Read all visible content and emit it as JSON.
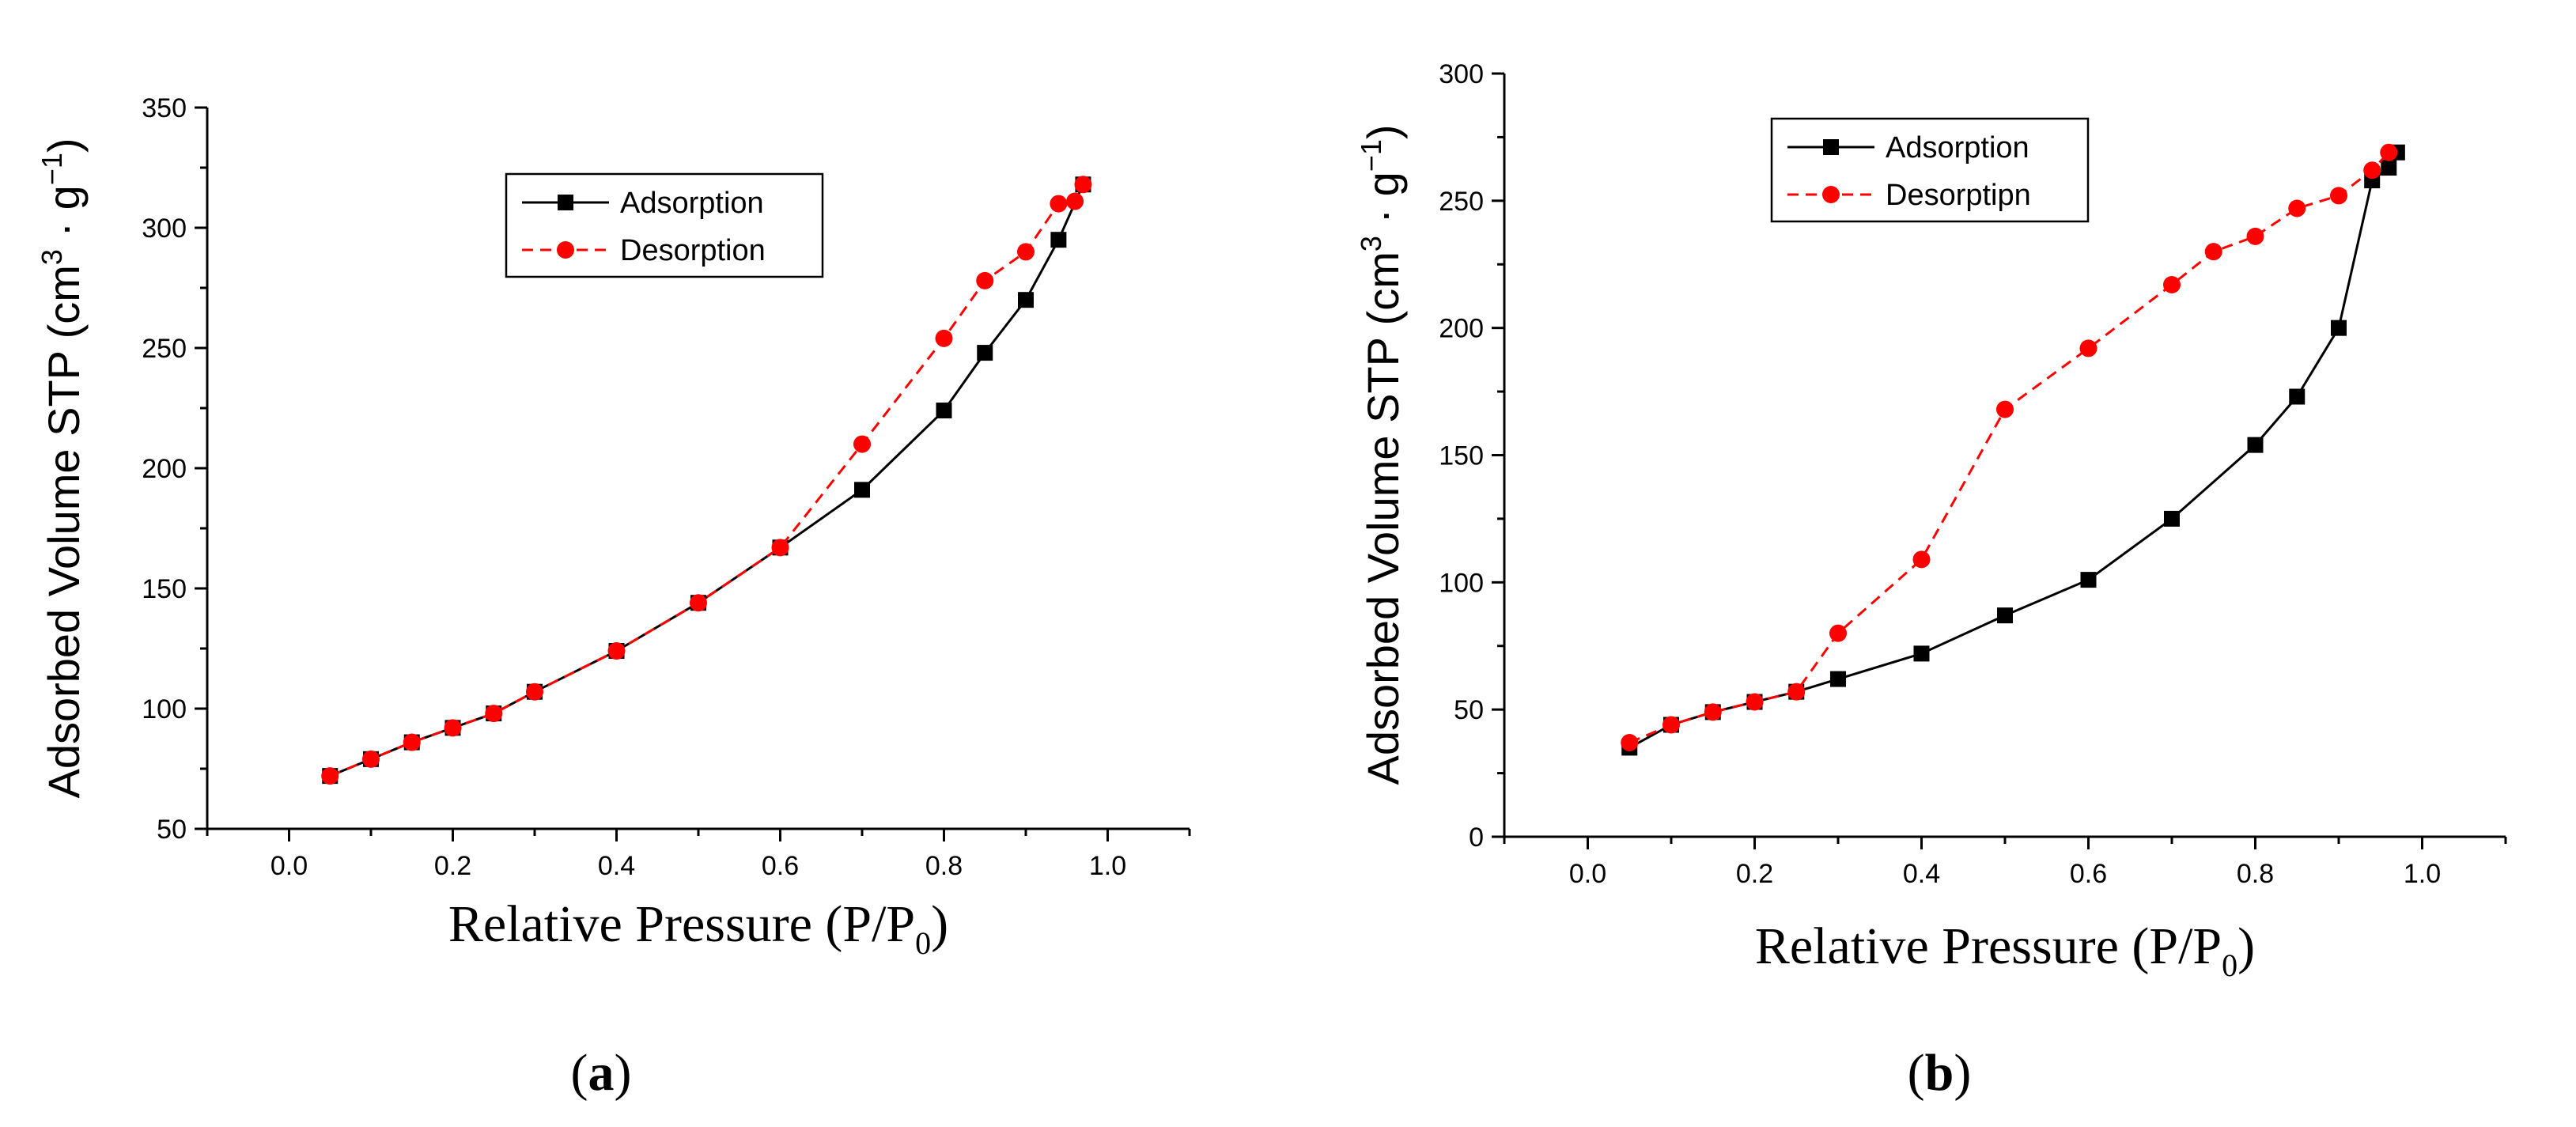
{
  "chart_data": [
    {
      "type": "line",
      "panel_label": "(a)",
      "panel_letter": "a",
      "xlabel": "Relative Pressure (P/P",
      "xlabel_sub": "0",
      "xlabel_end": ")",
      "ylabel": "Adsorbed Volume STP (cm",
      "ylabel_sup": "3",
      "ylabel_mid": "· g",
      "ylabel_sup2": "−1",
      "ylabel_end": ")",
      "xlim": [
        -0.1,
        1.1
      ],
      "ylim": [
        50,
        350
      ],
      "xticks": [
        0.0,
        0.2,
        0.4,
        0.6,
        0.8,
        1.0
      ],
      "xtick_labels": [
        "0.0",
        "0.2",
        "0.4",
        "0.6",
        "0.8",
        "1.0"
      ],
      "yticks": [
        50,
        100,
        150,
        200,
        250,
        300,
        350
      ],
      "ytick_labels": [
        "50",
        "100",
        "150",
        "200",
        "250",
        "300",
        "350"
      ],
      "legend_position": "top-center",
      "series": [
        {
          "name": "Adsorption",
          "color": "#000000",
          "marker": "square",
          "line": "solid",
          "x": [
            0.05,
            0.1,
            0.15,
            0.2,
            0.25,
            0.3,
            0.4,
            0.5,
            0.6,
            0.7,
            0.8,
            0.85,
            0.9,
            0.94,
            0.97
          ],
          "y": [
            72,
            79,
            86,
            92,
            98,
            107,
            124,
            144,
            167,
            191,
            224,
            248,
            270,
            295,
            318
          ]
        },
        {
          "name": "Desorption",
          "color": "#ff0000",
          "marker": "circle",
          "line": "dashed",
          "x": [
            0.05,
            0.1,
            0.15,
            0.2,
            0.25,
            0.3,
            0.4,
            0.5,
            0.6,
            0.7,
            0.8,
            0.85,
            0.9,
            0.94,
            0.96,
            0.97
          ],
          "y": [
            72,
            79,
            86,
            92,
            98,
            107,
            124,
            144,
            167,
            210,
            254,
            278,
            290,
            310,
            311,
            318
          ]
        }
      ]
    },
    {
      "type": "line",
      "panel_label": "(b)",
      "panel_letter": "b",
      "xlabel": "Relative Pressure (P/P",
      "xlabel_sub": "0",
      "xlabel_end": ")",
      "ylabel": "Adsorbed Volume STP (cm",
      "ylabel_sup": "3",
      "ylabel_mid": "· g",
      "ylabel_sup2": "−1",
      "ylabel_end": ")",
      "xlim": [
        -0.1,
        1.1
      ],
      "ylim": [
        0,
        300
      ],
      "xticks": [
        0.0,
        0.2,
        0.4,
        0.6,
        0.8,
        1.0
      ],
      "xtick_labels": [
        "0.0",
        "0.2",
        "0.4",
        "0.6",
        "0.8",
        "1.0"
      ],
      "yticks": [
        0,
        50,
        100,
        150,
        200,
        250,
        300
      ],
      "ytick_labels": [
        "0",
        "50",
        "100",
        "150",
        "200",
        "250",
        "300"
      ],
      "legend_position": "top-left",
      "series": [
        {
          "name": "Adsorption",
          "color": "#000000",
          "marker": "square",
          "line": "solid",
          "x": [
            0.05,
            0.1,
            0.15,
            0.2,
            0.25,
            0.3,
            0.4,
            0.5,
            0.6,
            0.7,
            0.8,
            0.85,
            0.9,
            0.94,
            0.96,
            0.97
          ],
          "y": [
            35,
            44,
            49,
            53,
            57,
            62,
            72,
            87,
            101,
            125,
            154,
            173,
            200,
            258,
            263,
            269
          ]
        },
        {
          "name": "Desorptipn",
          "color": "#ff0000",
          "marker": "circle",
          "line": "dashed",
          "x": [
            0.05,
            0.1,
            0.15,
            0.2,
            0.25,
            0.3,
            0.4,
            0.5,
            0.6,
            0.7,
            0.75,
            0.8,
            0.85,
            0.9,
            0.94,
            0.96
          ],
          "y": [
            37,
            44,
            49,
            53,
            57,
            80,
            109,
            168,
            192,
            217,
            230,
            236,
            247,
            252,
            262,
            269
          ]
        }
      ]
    }
  ]
}
